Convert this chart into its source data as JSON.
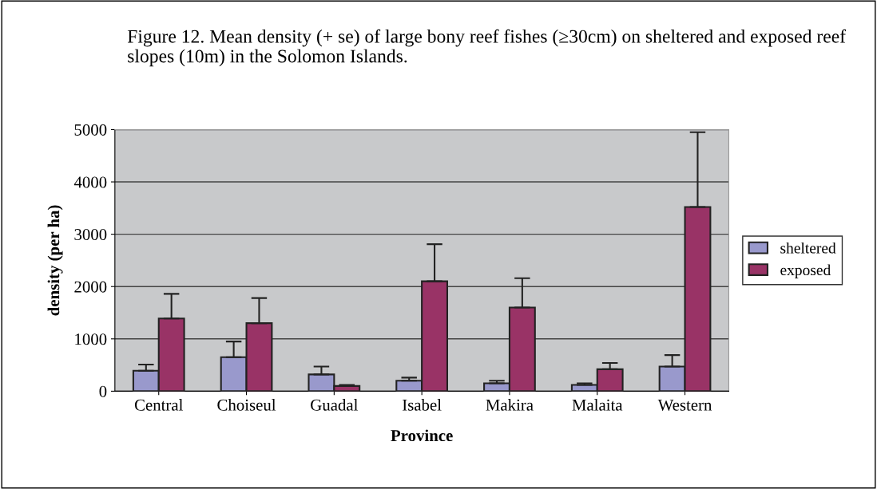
{
  "chart_data": {
    "type": "bar",
    "title": "Figure 12. Mean density (+ se) of large bony reef fishes (≥30cm) on sheltered and exposed reef slopes (10m) in the Solomon Islands.",
    "xlabel": "Province",
    "ylabel": "density (per ha)",
    "categories": [
      "Central",
      "Choiseul",
      "Guadal",
      "Isabel",
      "Makira",
      "Malaita",
      "Western"
    ],
    "series": [
      {
        "name": "sheltered",
        "color": "#9999cc",
        "values": [
          390,
          650,
          320,
          200,
          150,
          120,
          470
        ],
        "errors": [
          [
            390,
            510
          ],
          [
            650,
            950
          ],
          [
            320,
            470
          ],
          [
            200,
            260
          ],
          [
            150,
            200
          ],
          [
            120,
            150
          ],
          [
            470,
            690
          ]
        ]
      },
      {
        "name": "exposed",
        "color": "#993366",
        "values": [
          1390,
          1300,
          100,
          2100,
          1600,
          420,
          3520
        ],
        "errors": [
          [
            1390,
            1860
          ],
          [
            1300,
            1780
          ],
          [
            100,
            120
          ],
          [
            2100,
            2810
          ],
          [
            1600,
            2160
          ],
          [
            420,
            540
          ],
          [
            3520,
            4950
          ]
        ]
      }
    ],
    "ylim": [
      0,
      5000
    ],
    "yticks": [
      0,
      1000,
      2000,
      3000,
      4000,
      5000
    ],
    "grid": "y",
    "legend": "right"
  }
}
